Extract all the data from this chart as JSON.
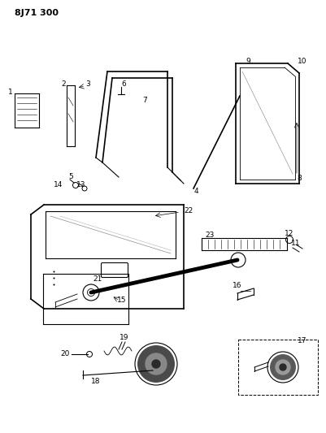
{
  "title": "8J71 300",
  "bg_color": "#ffffff",
  "fg_color": "#000000",
  "fig_width": 4.01,
  "fig_height": 5.33,
  "dpi": 100
}
